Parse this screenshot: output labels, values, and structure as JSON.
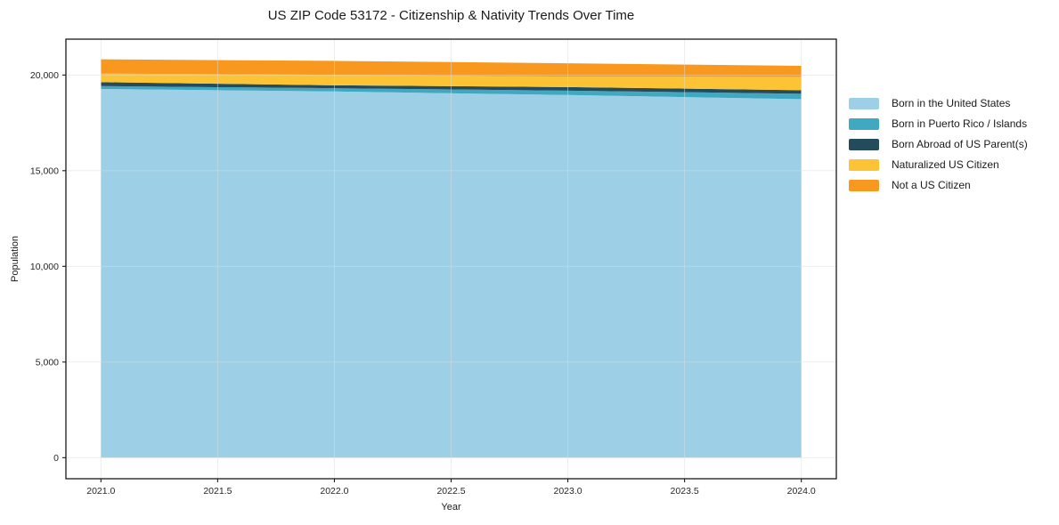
{
  "chart_data": {
    "type": "area",
    "stacked": true,
    "title": "US ZIP Code 53172 - Citizenship & Nativity Trends Over Time",
    "xlabel": "Year",
    "ylabel": "Population",
    "x": [
      2021,
      2022,
      2023,
      2024
    ],
    "series": [
      {
        "name": "Born in the United States",
        "color": "#9DD0E7",
        "values": [
          19270,
          19140,
          18955,
          18740
        ]
      },
      {
        "name": "Born in Puerto Rico / Islands",
        "color": "#41A8C2",
        "values": [
          150,
          170,
          230,
          280
        ]
      },
      {
        "name": "Born Abroad of US Parent(s)",
        "color": "#244B5C",
        "values": [
          205,
          155,
          185,
          185
        ]
      },
      {
        "name": "Naturalized US Citizen",
        "color": "#FCC434",
        "values": [
          450,
          545,
          545,
          700
        ]
      },
      {
        "name": "Not a US Citizen",
        "color": "#F8981F",
        "values": [
          745,
          730,
          700,
          575
        ]
      }
    ],
    "x_ticks": [
      {
        "value": 2021.0,
        "label": "2021.0"
      },
      {
        "value": 2021.5,
        "label": "2021.5"
      },
      {
        "value": 2022.0,
        "label": "2022.0"
      },
      {
        "value": 2022.5,
        "label": "2022.5"
      },
      {
        "value": 2023.0,
        "label": "2023.0"
      },
      {
        "value": 2023.5,
        "label": "2023.5"
      },
      {
        "value": 2024.0,
        "label": "2024.0"
      }
    ],
    "y_ticks": [
      {
        "value": 0,
        "label": "0"
      },
      {
        "value": 5000,
        "label": "5,000"
      },
      {
        "value": 10000,
        "label": "10,000"
      },
      {
        "value": 15000,
        "label": "15,000"
      },
      {
        "value": 20000,
        "label": "20,000"
      }
    ],
    "xlim": [
      2020.85,
      2024.15
    ],
    "ylim": [
      -1100,
      21875
    ],
    "grid": true,
    "legend_position": "right",
    "spine_color": "#1a1a1a",
    "grid_color": "#dcdcdc"
  }
}
